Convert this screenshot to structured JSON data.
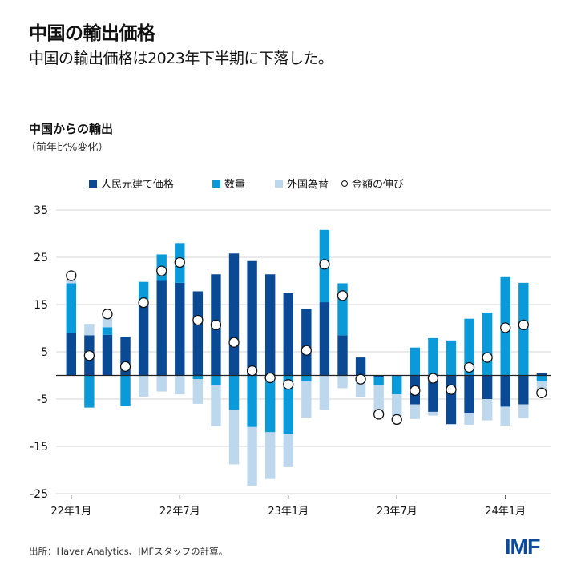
{
  "header": {
    "title": "中国の輸出価格",
    "subtitle": "中国の輸出価格は2023年下半期に下落した。"
  },
  "footer": {
    "source": "出所：Haver Analytics、IMFスタッフの計算。",
    "logo": "IMF"
  },
  "chart_data": {
    "type": "bar",
    "stacked": true,
    "title": "中国からの輸出",
    "ylabel": "（前年比%変化）",
    "ylim": [
      -25,
      35
    ],
    "yticks": [
      "35",
      "25",
      "15",
      "5",
      "-5",
      "-15",
      "-25"
    ],
    "grid": true,
    "legend_position": "top",
    "categories": [
      "2022-01",
      "2022-02",
      "2022-03",
      "2022-04",
      "2022-05",
      "2022-06",
      "2022-07",
      "2022-08",
      "2022-09",
      "2022-10",
      "2022-11",
      "2022-12",
      "2023-01",
      "2023-02",
      "2023-03",
      "2023-04",
      "2023-05",
      "2023-06",
      "2023-07",
      "2023-08",
      "2023-09",
      "2023-10",
      "2023-11",
      "2023-12",
      "2024-01",
      "2024-02",
      "2024-03"
    ],
    "xtick_labels": [
      {
        "category": "2022-01",
        "label": "22年1月"
      },
      {
        "category": "2022-07",
        "label": "22年7月"
      },
      {
        "category": "2023-01",
        "label": "23年1月"
      },
      {
        "category": "2023-07",
        "label": "23年7月"
      },
      {
        "category": "2024-01",
        "label": "24年1月"
      }
    ],
    "series": [
      {
        "name": "人民元建て価格",
        "color": "#0a4a94",
        "kind": "bar",
        "values": [
          8.9,
          8.5,
          8.6,
          8.2,
          15.1,
          20.0,
          19.6,
          17.8,
          21.4,
          25.8,
          24.2,
          21.4,
          17.5,
          14.1,
          15.5,
          8.5,
          3.8,
          -0.3,
          0,
          -6.1,
          -7.7,
          -10.3,
          -7.9,
          -5.0,
          -6.6,
          -6.1,
          0.6
        ]
      },
      {
        "name": "数量",
        "color": "#0a9ad9",
        "kind": "bar",
        "values": [
          10.6,
          -6.8,
          1.6,
          -6.5,
          4.7,
          5.6,
          8.4,
          -0.8,
          -2.1,
          -7.3,
          -10.9,
          -12.0,
          -12.4,
          -1.3,
          15.3,
          11.0,
          0,
          -1.7,
          -4.0,
          5.9,
          7.9,
          7.4,
          12.0,
          13.3,
          20.8,
          19.6,
          -1.3
        ]
      },
      {
        "name": "外国為替",
        "color": "#bdd7ec",
        "kind": "bar",
        "values": [
          0.7,
          2.4,
          2.1,
          0,
          -4.5,
          -3.4,
          -4.0,
          -5.2,
          -8.6,
          -11.5,
          -12.4,
          -9.9,
          -7.0,
          -7.6,
          -7.3,
          -2.7,
          -4.6,
          -6.1,
          -4.6,
          -3.1,
          -0.8,
          0,
          -2.5,
          -4.5,
          -4.0,
          -2.9,
          -2.3
        ]
      },
      {
        "name": "金額の伸び",
        "color": "#ffffff",
        "kind": "marker",
        "values": [
          21.1,
          4.2,
          13.0,
          1.9,
          15.4,
          22.1,
          23.9,
          11.7,
          10.7,
          7.0,
          1.0,
          -0.5,
          -1.9,
          5.3,
          23.5,
          16.9,
          -0.8,
          -8.2,
          -9.3,
          -3.2,
          -0.6,
          -3.0,
          1.7,
          3.8,
          10.1,
          10.7,
          -3.7
        ]
      }
    ]
  }
}
